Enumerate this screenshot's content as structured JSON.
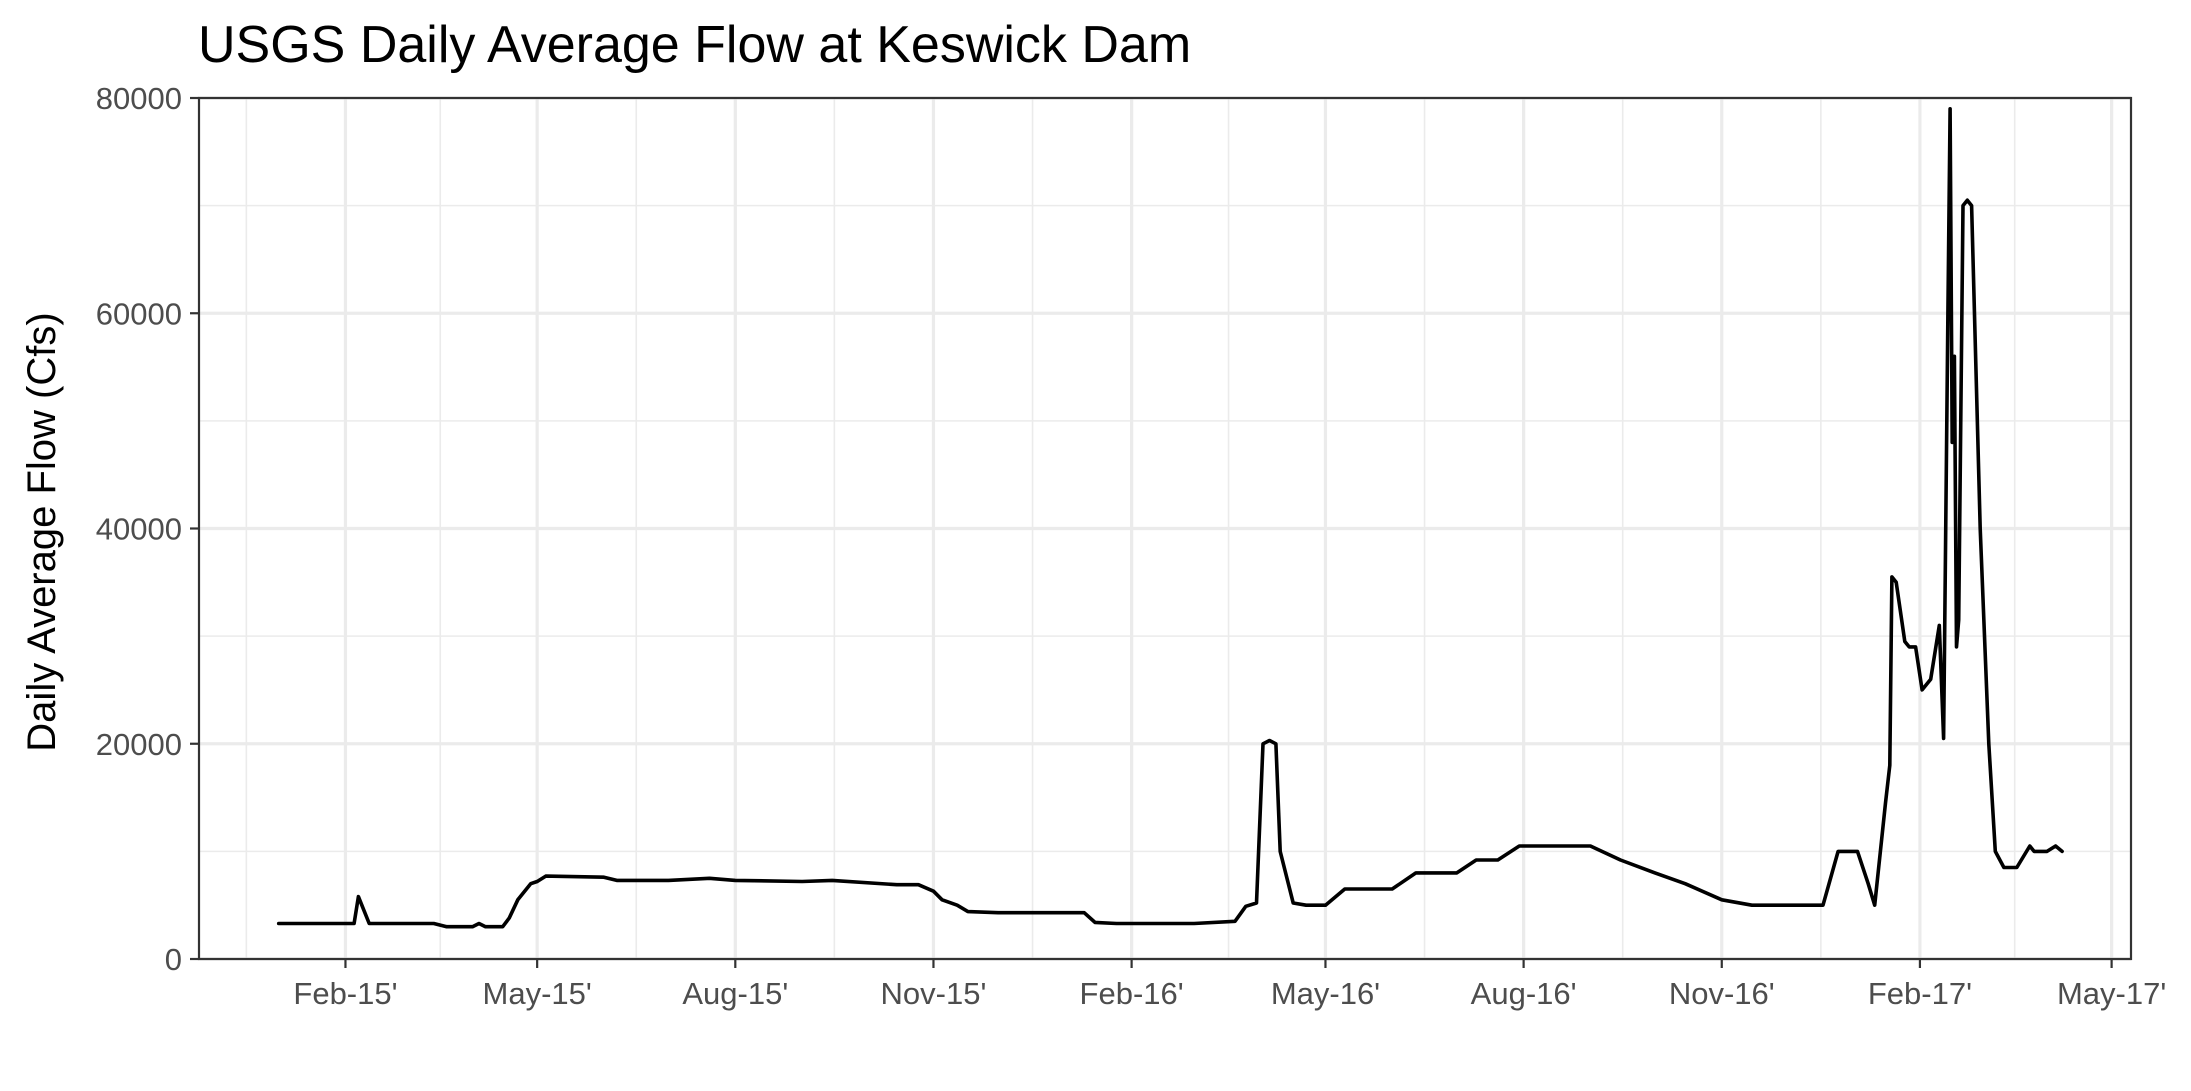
{
  "chart_data": {
    "type": "line",
    "title": "USGS Daily Average Flow at Keswick Dam",
    "xlabel": "",
    "ylabel": "Daily Average Flow (Cfs)",
    "ylim": [
      0,
      80000
    ],
    "xlim": [
      "2014-11-25",
      "2017-05-10"
    ],
    "grid": true,
    "legend": "none",
    "line_color": "#000000",
    "y_ticks": [
      0,
      20000,
      40000,
      60000,
      80000
    ],
    "y_tick_labels": [
      "0",
      "20000",
      "40000",
      "60000",
      "80000"
    ],
    "x_ticks": [
      "2015-02-01",
      "2015-05-01",
      "2015-08-01",
      "2015-11-01",
      "2016-02-01",
      "2016-05-01",
      "2016-08-01",
      "2016-11-01",
      "2017-02-01",
      "2017-05-01"
    ],
    "x_tick_labels": [
      "Feb-15'",
      "May-15'",
      "Aug-15'",
      "Nov-15'",
      "Feb-16'",
      "May-16'",
      "Aug-16'",
      "Nov-16'",
      "Feb-17'",
      "May-17'"
    ],
    "x_minor_ticks": [
      "2014-12-17",
      "2015-03-17",
      "2015-06-16",
      "2015-09-16",
      "2015-12-17",
      "2016-03-17",
      "2016-06-16",
      "2016-09-16",
      "2016-12-17",
      "2017-03-17"
    ],
    "series": [
      {
        "x": [
          "2015-01-01",
          "2015-01-25",
          "2015-02-01",
          "2015-02-05",
          "2015-02-07",
          "2015-02-09",
          "2015-02-12",
          "2015-03-14",
          "2015-03-20",
          "2015-04-01",
          "2015-04-04",
          "2015-04-07",
          "2015-04-15",
          "2015-04-18",
          "2015-04-22",
          "2015-04-28",
          "2015-05-01",
          "2015-05-05",
          "2015-06-01",
          "2015-06-07",
          "2015-07-01",
          "2015-07-20",
          "2015-08-01",
          "2015-09-01",
          "2015-09-15",
          "2015-10-15",
          "2015-10-25",
          "2015-11-01",
          "2015-11-05",
          "2015-11-12",
          "2015-11-17",
          "2015-12-01",
          "2016-01-10",
          "2016-01-15",
          "2016-01-25",
          "2016-03-01",
          "2016-03-20",
          "2016-03-25",
          "2016-03-30",
          "2016-04-02",
          "2016-04-05",
          "2016-04-08",
          "2016-04-10",
          "2016-04-16",
          "2016-04-22",
          "2016-04-25",
          "2016-05-01",
          "2016-05-10",
          "2016-06-01",
          "2016-06-12",
          "2016-07-01",
          "2016-07-10",
          "2016-07-20",
          "2016-07-30",
          "2016-08-05",
          "2016-08-15",
          "2016-09-01",
          "2016-09-15",
          "2016-10-01",
          "2016-10-15",
          "2016-11-01",
          "2016-11-15",
          "2016-12-12",
          "2016-12-18",
          "2016-12-25",
          "2017-01-03",
          "2017-01-08",
          "2017-01-11",
          "2017-01-16",
          "2017-01-18",
          "2017-01-19",
          "2017-01-21",
          "2017-01-25",
          "2017-01-27",
          "2017-01-30",
          "2017-02-02",
          "2017-02-06",
          "2017-02-10",
          "2017-02-12",
          "2017-02-14",
          "2017-02-15",
          "2017-02-16",
          "2017-02-17",
          "2017-02-18",
          "2017-02-19",
          "2017-02-21",
          "2017-02-23",
          "2017-02-25",
          "2017-03-01",
          "2017-03-05",
          "2017-03-08",
          "2017-03-12",
          "2017-03-18",
          "2017-03-24",
          "2017-03-26",
          "2017-04-01",
          "2017-04-05",
          "2017-04-08"
        ],
        "y": [
          3300,
          3300,
          3300,
          3300,
          5800,
          4800,
          3300,
          3300,
          3000,
          3000,
          3300,
          3000,
          3000,
          3800,
          5500,
          7000,
          7200,
          7700,
          7600,
          7300,
          7300,
          7500,
          7300,
          7200,
          7300,
          6900,
          6900,
          6300,
          5500,
          5000,
          4400,
          4300,
          4300,
          3400,
          3300,
          3300,
          3500,
          4900,
          5200,
          20000,
          20300,
          20000,
          10000,
          5200,
          5000,
          5000,
          5000,
          6500,
          6500,
          8000,
          8000,
          9200,
          9200,
          10500,
          10500,
          10500,
          10500,
          9200,
          8000,
          7000,
          5500,
          5000,
          5000,
          5000,
          10000,
          10000,
          7000,
          5000,
          14500,
          18000,
          35500,
          35000,
          29500,
          29000,
          29000,
          25000,
          26000,
          31000,
          20500,
          60000,
          79000,
          48000,
          56000,
          29000,
          31500,
          70000,
          70500,
          70000,
          40000,
          20000,
          10000,
          8500,
          8500,
          10500,
          10000,
          10000,
          10500,
          10000
        ]
      }
    ]
  }
}
